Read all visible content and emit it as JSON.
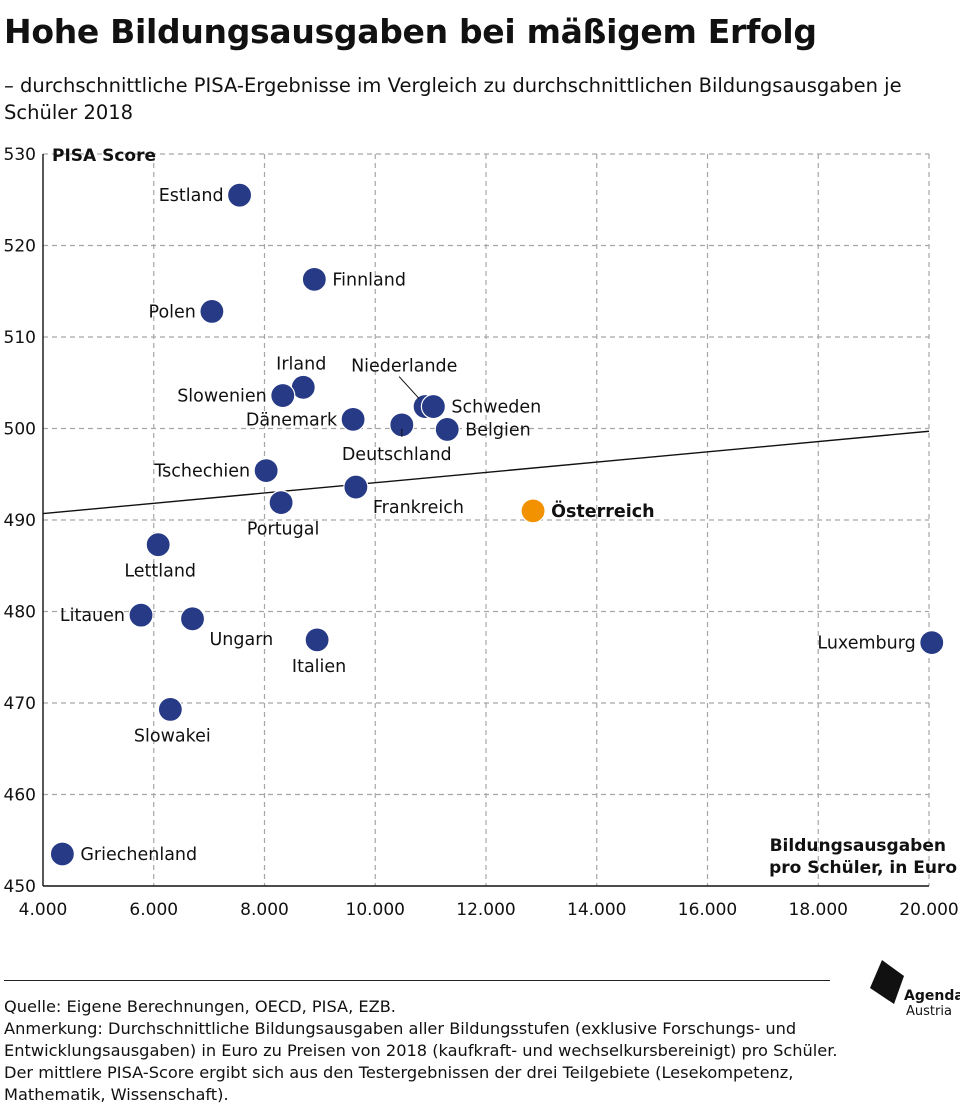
{
  "chart_data": {
    "type": "scatter",
    "title": "Hohe Bildungsausgaben bei mäßigem Erfolg",
    "subtitle": "– durchschnittliche PISA-Ergebnisse im Vergleich zu durchschnittlichen Bildungsausgaben je Schüler 2018",
    "ylabel": "PISA Score",
    "xlabel_lines": [
      "Bildungsausgaben",
      "pro Schüler, in Euro"
    ],
    "xlim": [
      4000,
      20000
    ],
    "ylim": [
      450,
      530
    ],
    "x_ticks": [
      4000,
      6000,
      8000,
      10000,
      12000,
      14000,
      16000,
      18000,
      20000
    ],
    "x_tick_labels": [
      "4.000",
      "6.000",
      "8.000",
      "10.000",
      "12.000",
      "14.000",
      "16.000",
      "18.000",
      "20.000"
    ],
    "y_ticks": [
      450,
      460,
      470,
      480,
      490,
      500,
      510,
      520,
      530
    ],
    "y_tick_labels": [
      "450",
      "460",
      "470",
      "480",
      "490",
      "500",
      "510",
      "520",
      "530"
    ],
    "grid": true,
    "trendline": {
      "x": [
        4000,
        20000
      ],
      "y": [
        490.7,
        499.7
      ]
    },
    "colors": {
      "default": "#263a86",
      "highlight": "#f39200",
      "grid": "#a6a6a6",
      "axis": "#111111"
    },
    "points": [
      {
        "label": "Estland",
        "x": 7550,
        "y": 525.5,
        "anchor": "left"
      },
      {
        "label": "Finnland",
        "x": 8900,
        "y": 516.3,
        "anchor": "right"
      },
      {
        "label": "Polen",
        "x": 7050,
        "y": 512.8,
        "anchor": "left"
      },
      {
        "label": "Irland",
        "x": 8700,
        "y": 504.5,
        "anchor": "above"
      },
      {
        "label": "Slowenien",
        "x": 8330,
        "y": 503.6,
        "anchor": "left"
      },
      {
        "label": "Dänemark",
        "x": 9600,
        "y": 501.0,
        "anchor": "left"
      },
      {
        "label": "Niederlande",
        "x": 10900,
        "y": 502.4,
        "anchor": "leader-up"
      },
      {
        "label": "Schweden",
        "x": 11050,
        "y": 502.4,
        "anchor": "right"
      },
      {
        "label": "Deutschland",
        "x": 10480,
        "y": 500.4,
        "anchor": "leader-down"
      },
      {
        "label": "Belgien",
        "x": 11300,
        "y": 499.9,
        "anchor": "right"
      },
      {
        "label": "Tschechien",
        "x": 8030,
        "y": 495.4,
        "anchor": "left"
      },
      {
        "label": "Frankreich",
        "x": 9650,
        "y": 493.6,
        "anchor": "below-right"
      },
      {
        "label": "Portugal",
        "x": 8300,
        "y": 491.9,
        "anchor": "below"
      },
      {
        "label": "Österreich",
        "x": 12850,
        "y": 491.0,
        "anchor": "right",
        "highlight": true
      },
      {
        "label": "Lettland",
        "x": 6080,
        "y": 487.3,
        "anchor": "below"
      },
      {
        "label": "Litauen",
        "x": 5770,
        "y": 479.6,
        "anchor": "left"
      },
      {
        "label": "Ungarn",
        "x": 6700,
        "y": 479.2,
        "anchor": "below-right"
      },
      {
        "label": "Italien",
        "x": 8950,
        "y": 476.9,
        "anchor": "below"
      },
      {
        "label": "Luxemburg",
        "x": 20050,
        "y": 476.6,
        "anchor": "left"
      },
      {
        "label": "Slowakei",
        "x": 6300,
        "y": 469.3,
        "anchor": "below"
      },
      {
        "label": "Griechenland",
        "x": 4350,
        "y": 453.5,
        "anchor": "right"
      }
    ]
  },
  "footer": {
    "source": "Quelle: Eigene Berechnungen, OECD, PISA, EZB.",
    "note": "Anmerkung: Durchschnittliche Bildungsausgaben aller Bildungsstufen (exklusive Forschungs- und Entwicklungsausgaben) in Euro zu Preisen von 2018 (kaufkraft- und wechselkursbereinigt) pro Schüler. Der mittlere PISA-Score ergibt sich aus den Testergebnissen der drei Teilgebiete (Lesekompetenz, Mathematik, Wissenschaft)."
  },
  "logo": {
    "line1": "Agenda",
    "line2": "Austria"
  }
}
